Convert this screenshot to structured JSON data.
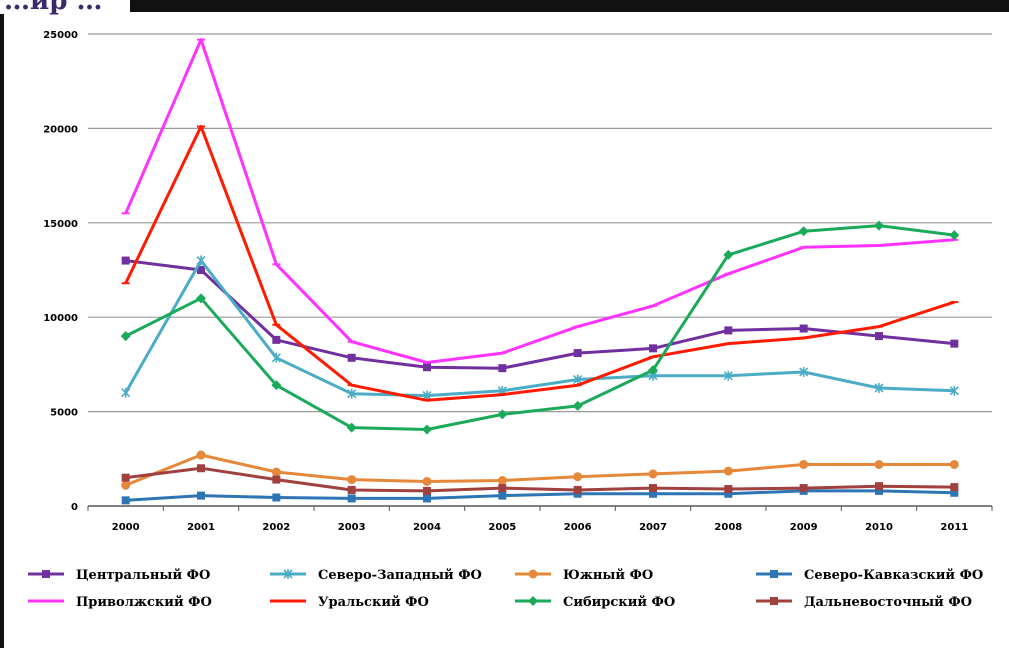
{
  "page": {
    "cut_title": "…ир …"
  },
  "chart_data": {
    "type": "line",
    "title": "",
    "xlabel": "",
    "ylabel": "",
    "ylim": [
      0,
      25000
    ],
    "yticks": [
      "0",
      "5000",
      "10000",
      "15000",
      "20000",
      "25000"
    ],
    "grid": true,
    "legend_position": "bottom",
    "categories": [
      "2000",
      "2001",
      "2002",
      "2003",
      "2004",
      "2005",
      "2006",
      "2007",
      "2008",
      "2009",
      "2010",
      "2011"
    ],
    "series": [
      {
        "name": "Центральный ФО",
        "color": "#7030a0",
        "marker": "square",
        "values": [
          13000,
          12500,
          8800,
          7850,
          7350,
          7300,
          8100,
          8350,
          9300,
          9400,
          9000,
          8600
        ]
      },
      {
        "name": "Северо-Западный ФО",
        "color": "#4bacc6",
        "marker": "star",
        "values": [
          6000,
          13000,
          7850,
          5950,
          5850,
          6100,
          6700,
          6900,
          6900,
          7100,
          6250,
          6100
        ]
      },
      {
        "name": "Южный ФО",
        "color": "#e5883a",
        "marker": "circle",
        "values": [
          1100,
          2700,
          1800,
          1400,
          1300,
          1350,
          1550,
          1700,
          1850,
          2200,
          2200,
          2200
        ]
      },
      {
        "name": "Северо-Кавказский ФО",
        "color": "#2e75b6",
        "marker": "square",
        "values": [
          300,
          550,
          450,
          400,
          400,
          550,
          650,
          650,
          650,
          800,
          800,
          700
        ]
      },
      {
        "name": "Приволжский ФО",
        "color": "#ff33ff",
        "marker": "dash",
        "values": [
          15500,
          24700,
          12800,
          8700,
          7600,
          8100,
          9500,
          10600,
          12300,
          13700,
          13800,
          14100
        ]
      },
      {
        "name": "Уральский ФО",
        "color": "#ff1a00",
        "marker": "dash",
        "values": [
          11800,
          20100,
          9600,
          6400,
          5600,
          5900,
          6400,
          7900,
          8600,
          8900,
          9500,
          10800
        ]
      },
      {
        "name": "Сибирский ФО",
        "color": "#1aaa5a",
        "marker": "diamond",
        "values": [
          9000,
          11000,
          6400,
          4150,
          4050,
          4850,
          5300,
          7200,
          13300,
          14550,
          14850,
          14350
        ]
      },
      {
        "name": "Дальневосточный ФО",
        "color": "#a0403f",
        "marker": "square",
        "values": [
          1500,
          2000,
          1400,
          850,
          800,
          950,
          850,
          950,
          900,
          950,
          1050,
          1000
        ]
      }
    ]
  }
}
